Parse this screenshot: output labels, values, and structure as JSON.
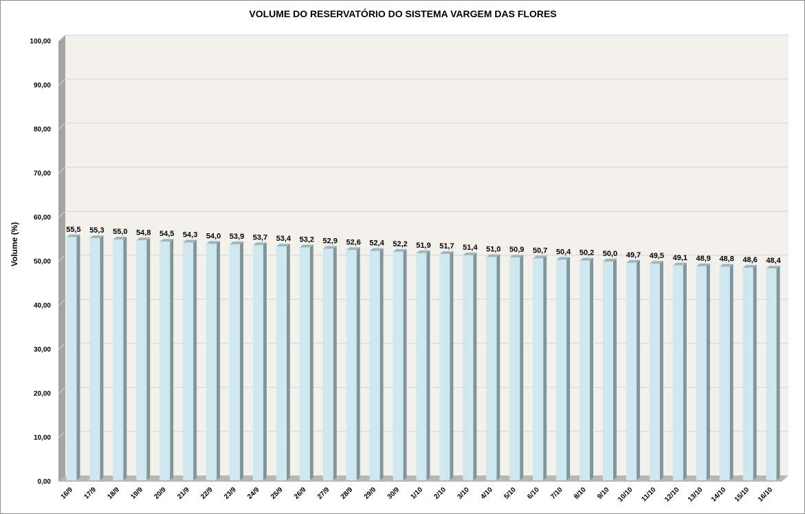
{
  "chart_data": {
    "type": "bar",
    "title": "VOLUME DO RESERVATÓRIO DO SISTEMA VARGEM DAS FLORES",
    "xlabel": "",
    "ylabel": "Volume (%)",
    "ylim": [
      0,
      100
    ],
    "yticks": [
      "0,00",
      "10,00",
      "20,00",
      "30,00",
      "40,00",
      "50,00",
      "60,00",
      "70,00",
      "80,00",
      "90,00",
      "100,00"
    ],
    "grid": true,
    "legend": "none",
    "categories": [
      "16/9",
      "17/9",
      "18/9",
      "19/9",
      "20/9",
      "21/9",
      "22/9",
      "23/9",
      "24/9",
      "25/9",
      "26/9",
      "27/9",
      "28/9",
      "29/9",
      "30/9",
      "1/10",
      "2/10",
      "3/10",
      "4/10",
      "5/10",
      "6/10",
      "7/10",
      "8/10",
      "9/10",
      "10/10",
      "11/10",
      "12/10",
      "13/10",
      "14/10",
      "15/10",
      "16/10"
    ],
    "values": [
      55.5,
      55.3,
      55.0,
      54.8,
      54.5,
      54.3,
      54.0,
      53.9,
      53.7,
      53.4,
      53.2,
      52.9,
      52.6,
      52.4,
      52.2,
      51.9,
      51.7,
      51.4,
      51.0,
      50.9,
      50.7,
      50.4,
      50.2,
      50.0,
      49.7,
      49.5,
      49.1,
      48.9,
      48.8,
      48.6,
      48.4
    ],
    "data_labels": [
      "55,5",
      "55,3",
      "55,0",
      "54,8",
      "54,5",
      "54,3",
      "54,0",
      "53,9",
      "53,7",
      "53,4",
      "53,2",
      "52,9",
      "52,6",
      "52,4",
      "52,2",
      "51,9",
      "51,7",
      "51,4",
      "51,0",
      "50,9",
      "50,7",
      "50,4",
      "50,2",
      "50,0",
      "49,7",
      "49,5",
      "49,1",
      "48,9",
      "48,8",
      "48,6",
      "48,4"
    ],
    "colors": {
      "bar_front": "#cfe7ee",
      "bar_side": "#7f969c",
      "bar_top": "#9fb6bc",
      "plot_back": "#f3f1ec",
      "wall_side": "#a6a6a0",
      "floor": "#b8b8b2",
      "grid": "#d2d2d2"
    }
  }
}
